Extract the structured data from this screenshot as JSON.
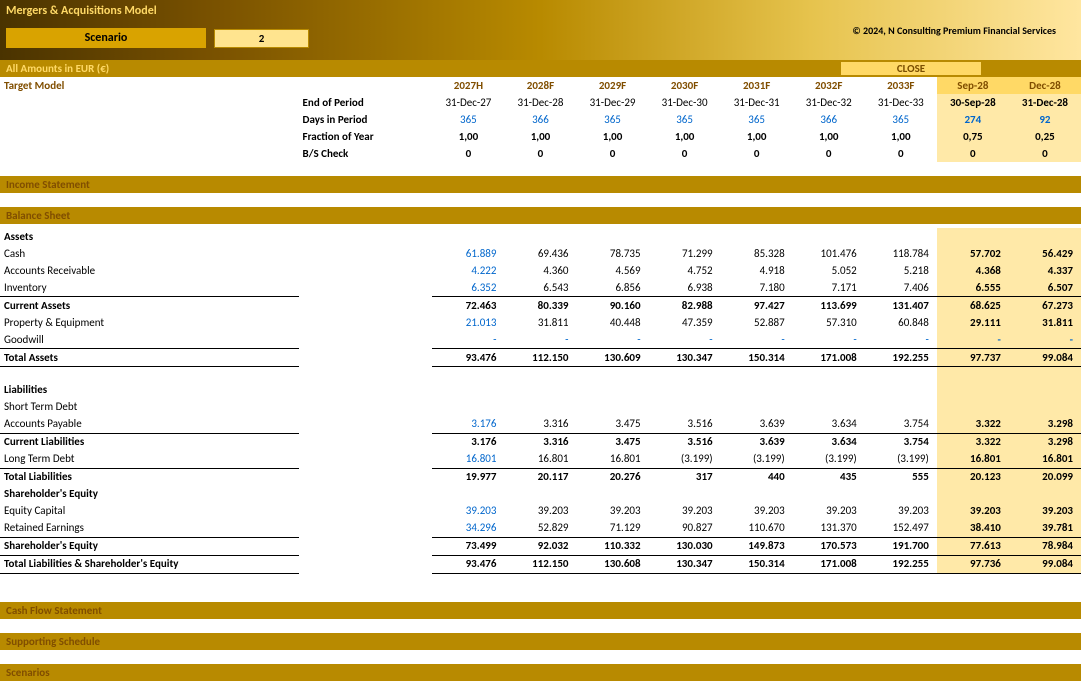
{
  "header": {
    "title": "Mergers & Acquisitions Model",
    "copyright": "© 2024, N Consulting Premium Financial Services",
    "scenario_label": "Scenario",
    "scenario_value": "2"
  },
  "currency_label": "All Amounts in  EUR (€)",
  "close_label": "CLOSE",
  "sections": {
    "target_model": "Target Model",
    "income_statement": "Income Statement",
    "balance_sheet": "Balance Sheet",
    "cash_flow": "Cash Flow Statement",
    "supporting": "Supporting Schedule",
    "scenarios": "Scenarios"
  },
  "period_headers": [
    "2027H",
    "2028F",
    "2029F",
    "2030F",
    "2031F",
    "2032F",
    "2033F"
  ],
  "close_headers": [
    "Sep-28",
    "Dec-28"
  ],
  "target": {
    "rows": [
      {
        "label": "End of Period",
        "cls": "bold",
        "vals": [
          "31-Dec-27",
          "31-Dec-28",
          "31-Dec-29",
          "31-Dec-30",
          "31-Dec-31",
          "31-Dec-32",
          "31-Dec-33"
        ],
        "close": [
          "30-Sep-28",
          "31-Dec-28"
        ],
        "align": "c"
      },
      {
        "label": "Days in Period",
        "cls": "bold",
        "vals": [
          "365",
          "366",
          "365",
          "365",
          "365",
          "366",
          "365"
        ],
        "close": [
          "274",
          "92"
        ],
        "align": "c",
        "vcls": "blue"
      },
      {
        "label": "Fraction of Year",
        "cls": "bold",
        "vals": [
          "1,00",
          "1,00",
          "1,00",
          "1,00",
          "1,00",
          "1,00",
          "1,00"
        ],
        "close": [
          "0,75",
          "0,25"
        ],
        "align": "c",
        "vcls": "bold"
      },
      {
        "label": "B/S Check",
        "cls": "bold",
        "vals": [
          "0",
          "0",
          "0",
          "0",
          "0",
          "0",
          "0"
        ],
        "close": [
          "0",
          "0"
        ],
        "align": "c",
        "vcls": "bold"
      }
    ]
  },
  "bs": {
    "assets_label": "Assets",
    "liab_label": "Liabilities",
    "se_label": "Shareholder's Equity",
    "rows_assets": [
      {
        "label": "Cash",
        "vals": [
          "61.889",
          "69.436",
          "78.735",
          "71.299",
          "85.328",
          "101.476",
          "118.784"
        ],
        "close": [
          "57.702",
          "56.429"
        ],
        "vcls": "blue",
        "first_only_blue": true
      },
      {
        "label": "Accounts Receivable",
        "vals": [
          "4.222",
          "4.360",
          "4.569",
          "4.752",
          "4.918",
          "5.052",
          "5.218"
        ],
        "close": [
          "4.368",
          "4.337"
        ],
        "vcls": "blue",
        "first_only_blue": true
      },
      {
        "label": "Inventory",
        "vals": [
          "6.352",
          "6.543",
          "6.856",
          "6.938",
          "7.180",
          "7.171",
          "7.406"
        ],
        "close": [
          "6.555",
          "6.507"
        ],
        "vcls": "blue",
        "first_only_blue": true,
        "bb": true
      },
      {
        "label": "Current Assets",
        "cls": "bold",
        "vals": [
          "72.463",
          "80.339",
          "90.160",
          "82.988",
          "97.427",
          "113.699",
          "131.407"
        ],
        "close": [
          "68.625",
          "67.273"
        ],
        "vcls": "bold"
      },
      {
        "label": "Property & Equipment",
        "vals": [
          "21.013",
          "31.811",
          "40.448",
          "47.359",
          "52.887",
          "57.310",
          "60.848"
        ],
        "close": [
          "29.111",
          "31.811"
        ],
        "vcls": "blue",
        "first_only_blue": true
      },
      {
        "label": "Goodwill",
        "vals": [
          "-",
          "-",
          "-",
          "-",
          "-",
          "-",
          "-"
        ],
        "close": [
          "-",
          "-"
        ],
        "vcls": "blue",
        "bb": true
      },
      {
        "label": "Total Assets",
        "cls": "bold",
        "vals": [
          "93.476",
          "112.150",
          "130.609",
          "130.347",
          "150.314",
          "171.008",
          "192.255"
        ],
        "close": [
          "97.737",
          "99.084"
        ],
        "vcls": "bold",
        "bb": true
      }
    ],
    "rows_liab": [
      {
        "label": "Short Term Debt",
        "vals": [
          "",
          "",
          "",
          "",
          "",
          "",
          ""
        ],
        "close": [
          "",
          ""
        ]
      },
      {
        "label": "Accounts Payable",
        "vals": [
          "3.176",
          "3.316",
          "3.475",
          "3.516",
          "3.639",
          "3.634",
          "3.754"
        ],
        "close": [
          "3.322",
          "3.298"
        ],
        "vcls": "blue",
        "first_only_blue": true,
        "bb": true
      },
      {
        "label": "Current Liabilities",
        "cls": "bold",
        "vals": [
          "3.176",
          "3.316",
          "3.475",
          "3.516",
          "3.639",
          "3.634",
          "3.754"
        ],
        "close": [
          "3.322",
          "3.298"
        ],
        "vcls": "bold"
      },
      {
        "label": "Long Term Debt",
        "vals": [
          "16.801",
          "16.801",
          "16.801",
          "(3.199)",
          "(3.199)",
          "(3.199)",
          "(3.199)"
        ],
        "close": [
          "16.801",
          "16.801"
        ],
        "vcls": "blue",
        "first_only_blue": true,
        "bb": true
      },
      {
        "label": "Total Liabilities",
        "cls": "bold",
        "vals": [
          "19.977",
          "20.117",
          "20.276",
          "317",
          "440",
          "435",
          "555"
        ],
        "close": [
          "20.123",
          "20.099"
        ],
        "vcls": "bold"
      }
    ],
    "rows_se": [
      {
        "label": "Equity Capital",
        "vals": [
          "39.203",
          "39.203",
          "39.203",
          "39.203",
          "39.203",
          "39.203",
          "39.203"
        ],
        "close": [
          "39.203",
          "39.203"
        ],
        "vcls": "blue",
        "first_only_blue": true
      },
      {
        "label": "Retained Earnings",
        "vals": [
          "34.296",
          "52.829",
          "71.129",
          "90.827",
          "110.670",
          "131.370",
          "152.497"
        ],
        "close": [
          "38.410",
          "39.781"
        ],
        "vcls": "blue",
        "first_only_blue": true,
        "bb": true
      },
      {
        "label": "Shareholder's Equity",
        "cls": "bold",
        "vals": [
          "73.499",
          "92.032",
          "110.332",
          "130.030",
          "149.873",
          "170.573",
          "191.700"
        ],
        "close": [
          "77.613",
          "78.984"
        ],
        "vcls": "bold",
        "bb": true
      },
      {
        "label": "Total Liabilities & Shareholder's Equity",
        "cls": "bold",
        "vals": [
          "93.476",
          "112.150",
          "130.608",
          "130.347",
          "150.314",
          "171.008",
          "192.255"
        ],
        "close": [
          "97.736",
          "99.084"
        ],
        "vcls": "bold",
        "bb": true
      }
    ]
  }
}
